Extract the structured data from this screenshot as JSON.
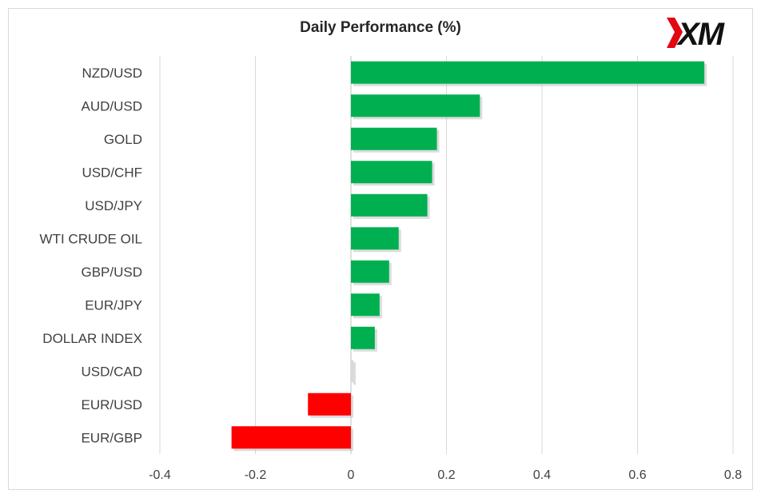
{
  "brand": {
    "logo_text": "XM",
    "accent": "#e30613",
    "ink": "#111111"
  },
  "chart_data": {
    "type": "bar",
    "orientation": "horizontal",
    "title": "Daily Performance (%)",
    "categories": [
      "NZD/USD",
      "AUD/USD",
      "GOLD",
      "USD/CHF",
      "USD/JPY",
      "WTI CRUDE OIL",
      "GBP/USD",
      "EUR/JPY",
      "DOLLAR INDEX",
      "USD/CAD",
      "EUR/USD",
      "EUR/GBP"
    ],
    "values": [
      0.74,
      0.27,
      0.18,
      0.17,
      0.16,
      0.1,
      0.08,
      0.06,
      0.05,
      0.005,
      -0.09,
      -0.25
    ],
    "xlim": [
      -0.4,
      0.8
    ],
    "xticks": [
      "-0.4",
      "-0.2",
      "0",
      "0.2",
      "0.4",
      "0.6",
      "0.8"
    ],
    "grid": true,
    "colors": {
      "positive": "#00b050",
      "negative": "#ff0000",
      "neutral": "#d9d9d9"
    }
  }
}
